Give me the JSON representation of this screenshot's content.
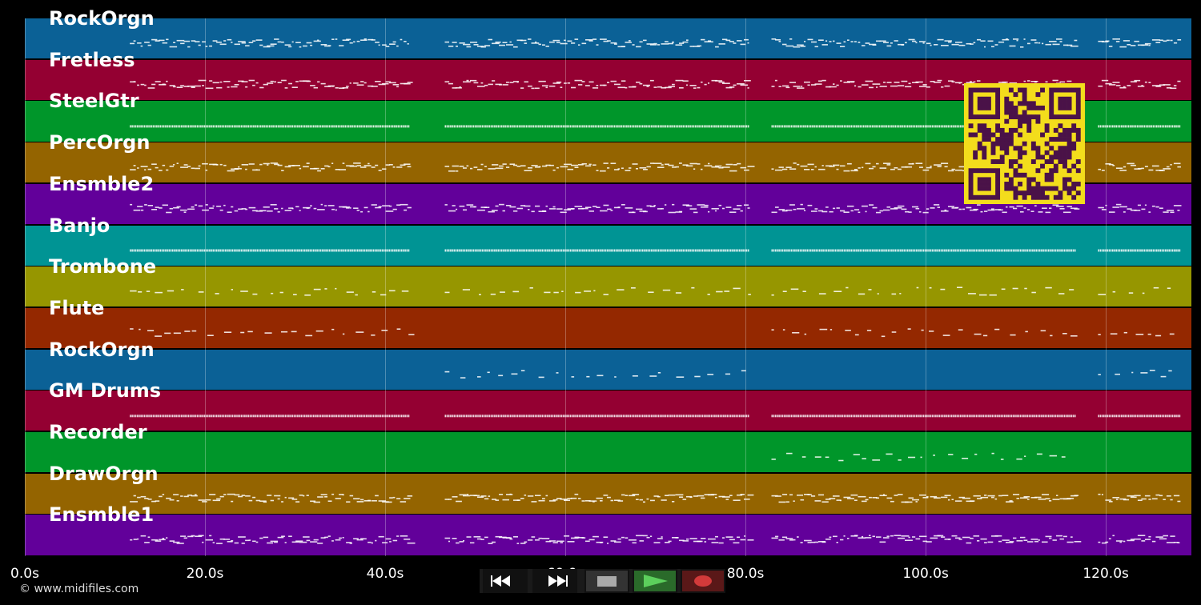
{
  "tracks": [
    {
      "name": "RockOrgn",
      "color": "#0b6196"
    },
    {
      "name": "Fretless",
      "color": "#940032"
    },
    {
      "name": "SteelGtr",
      "color": "#00962a"
    },
    {
      "name": "PercOrgn",
      "color": "#946400"
    },
    {
      "name": "Ensmble2",
      "color": "#62009a"
    },
    {
      "name": "Banjo",
      "color": "#009494"
    },
    {
      "name": "Trombone",
      "color": "#969600"
    },
    {
      "name": "Flute",
      "color": "#942800"
    },
    {
      "name": "RockOrgn",
      "color": "#0b6196"
    },
    {
      "name": "GM Drums",
      "color": "#940032"
    },
    {
      "name": "Recorder",
      "color": "#00962a"
    },
    {
      "name": "DrawOrgn",
      "color": "#946400"
    },
    {
      "name": "Ensmble1",
      "color": "#62009a"
    }
  ],
  "timeline": {
    "ticks": [
      "0.0s",
      "20.0s",
      "40.0s",
      "60.0s",
      "80.0s",
      "100.0s",
      "120.0s"
    ],
    "max_seconds": 129.5
  },
  "copyright": "© www.midifiles.com",
  "transport": {
    "buttons": [
      {
        "name": "rewind-icon",
        "color": "#ffffff"
      },
      {
        "name": "fast-forward-icon",
        "color": "#ffffff"
      },
      {
        "name": "stop-icon",
        "color": "#aaaaaa"
      },
      {
        "name": "play-icon",
        "color": "#5ccf5c"
      },
      {
        "name": "record-icon",
        "color": "#d23a3a"
      }
    ]
  },
  "qr_code": {
    "fg": "#4a1248",
    "bg": "#f3dd1c"
  }
}
